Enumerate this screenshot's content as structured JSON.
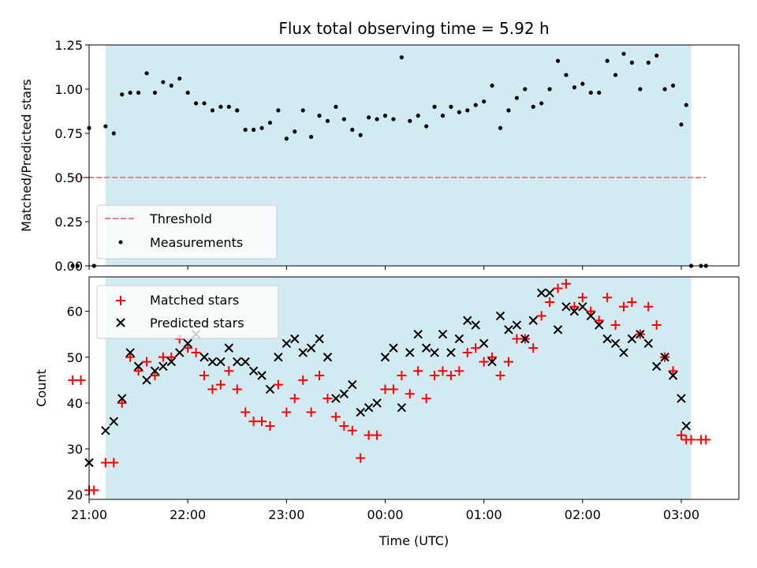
{
  "chart_data": [
    {
      "type": "scatter",
      "title": "Flux total observing time = 5.92 h",
      "xlabel": "",
      "ylabel": "Matched/Predicted stars",
      "ylim": [
        0,
        1.25
      ],
      "yticks": [
        "0.00",
        "0.25",
        "0.50",
        "0.75",
        "1.00",
        "1.25"
      ],
      "shaded_window": {
        "start": "21:10",
        "end": "03:06",
        "color": "#add8e6"
      },
      "legend_position": "lower-left",
      "series": [
        {
          "name": "Threshold",
          "style": "dashed-line",
          "color": "#f08080",
          "x": [
            "20:50",
            "03:15"
          ],
          "y": [
            0.5,
            0.5
          ]
        },
        {
          "name": "Measurements",
          "style": "dot",
          "color": "#000000",
          "x": [
            "20:50",
            "20:53",
            "21:00",
            "21:03",
            "21:10",
            "21:15",
            "21:20",
            "21:25",
            "21:30",
            "21:35",
            "21:40",
            "21:45",
            "21:50",
            "21:55",
            "22:00",
            "22:05",
            "22:10",
            "22:15",
            "22:20",
            "22:25",
            "22:30",
            "22:35",
            "22:40",
            "22:45",
            "22:50",
            "22:55",
            "23:00",
            "23:05",
            "23:10",
            "23:15",
            "23:20",
            "23:25",
            "23:30",
            "23:35",
            "23:40",
            "23:45",
            "23:50",
            "23:55",
            "00:00",
            "00:05",
            "00:10",
            "00:15",
            "00:20",
            "00:25",
            "00:30",
            "00:35",
            "00:40",
            "00:45",
            "00:50",
            "00:55",
            "01:00",
            "01:05",
            "01:10",
            "01:15",
            "01:20",
            "01:25",
            "01:30",
            "01:35",
            "01:40",
            "01:45",
            "01:50",
            "01:55",
            "02:00",
            "02:05",
            "02:10",
            "02:15",
            "02:20",
            "02:25",
            "02:30",
            "02:35",
            "02:40",
            "02:45",
            "02:50",
            "02:55",
            "03:00",
            "03:03",
            "03:06",
            "03:12",
            "03:15"
          ],
          "y": [
            0.0,
            0.0,
            0.78,
            0.0,
            0.79,
            0.75,
            0.97,
            0.98,
            0.98,
            1.09,
            0.98,
            1.04,
            1.02,
            1.06,
            0.98,
            0.92,
            0.92,
            0.88,
            0.9,
            0.9,
            0.88,
            0.77,
            0.77,
            0.78,
            0.81,
            0.88,
            0.72,
            0.76,
            0.88,
            0.73,
            0.85,
            0.82,
            0.9,
            0.83,
            0.77,
            0.74,
            0.84,
            0.83,
            0.85,
            0.83,
            1.18,
            0.82,
            0.85,
            0.79,
            0.9,
            0.85,
            0.9,
            0.87,
            0.88,
            0.91,
            0.93,
            1.02,
            0.78,
            0.88,
            0.95,
            1.0,
            0.9,
            0.92,
            1.0,
            1.16,
            1.08,
            1.01,
            1.03,
            0.98,
            0.98,
            1.16,
            1.08,
            1.2,
            1.15,
            1.0,
            1.15,
            1.19,
            1.0,
            1.02,
            0.8,
            0.91,
            0.0,
            0.0,
            0.0
          ]
        }
      ]
    },
    {
      "type": "scatter",
      "title": "",
      "xlabel": "Time (UTC)",
      "ylabel": "Count",
      "ylim": [
        19,
        67.5
      ],
      "yticks": [
        "20",
        "30",
        "40",
        "50",
        "60"
      ],
      "xticks": [
        "21:00",
        "22:00",
        "23:00",
        "00:00",
        "01:00",
        "02:00",
        "03:00"
      ],
      "shaded_window": {
        "start": "21:10",
        "end": "03:06",
        "color": "#add8e6"
      },
      "legend_position": "top-left",
      "series": [
        {
          "name": "Matched stars",
          "marker": "plus",
          "color": "#ff0000",
          "x": [
            "20:50",
            "20:55",
            "21:00",
            "21:03",
            "21:10",
            "21:15",
            "21:20",
            "21:25",
            "21:30",
            "21:35",
            "21:40",
            "21:45",
            "21:50",
            "21:55",
            "22:00",
            "22:05",
            "22:10",
            "22:15",
            "22:20",
            "22:25",
            "22:30",
            "22:35",
            "22:40",
            "22:45",
            "22:50",
            "22:55",
            "23:00",
            "23:05",
            "23:10",
            "23:15",
            "23:20",
            "23:25",
            "23:30",
            "23:35",
            "23:40",
            "23:45",
            "23:50",
            "23:55",
            "00:00",
            "00:05",
            "00:10",
            "00:15",
            "00:20",
            "00:25",
            "00:30",
            "00:35",
            "00:40",
            "00:45",
            "00:50",
            "00:55",
            "01:00",
            "01:05",
            "01:10",
            "01:15",
            "01:20",
            "01:25",
            "01:30",
            "01:35",
            "01:40",
            "01:45",
            "01:50",
            "01:55",
            "02:00",
            "02:05",
            "02:10",
            "02:15",
            "02:20",
            "02:25",
            "02:30",
            "02:35",
            "02:40",
            "02:45",
            "02:50",
            "02:55",
            "03:00",
            "03:03",
            "03:06",
            "03:12",
            "03:15"
          ],
          "y": [
            45,
            45,
            21,
            21,
            27,
            27,
            40,
            50,
            47,
            49,
            46,
            50,
            50,
            54,
            52,
            51,
            46,
            43,
            44,
            47,
            43,
            38,
            36,
            36,
            35,
            44,
            38,
            41,
            45,
            38,
            46,
            41,
            37,
            35,
            34,
            28,
            33,
            33,
            43,
            43,
            46,
            42,
            47,
            41,
            46,
            47,
            46,
            47,
            51,
            52,
            49,
            50,
            46,
            49,
            54,
            54,
            52,
            59,
            62,
            65,
            66,
            61,
            63,
            60,
            58,
            63,
            57,
            61,
            62,
            55,
            61,
            57,
            50,
            47,
            33,
            32,
            32,
            32,
            32
          ]
        },
        {
          "name": "Predicted stars",
          "marker": "x",
          "color": "#000000",
          "x": [
            "21:00",
            "21:10",
            "21:15",
            "21:20",
            "21:25",
            "21:30",
            "21:35",
            "21:40",
            "21:45",
            "21:50",
            "21:55",
            "22:00",
            "22:05",
            "22:10",
            "22:15",
            "22:20",
            "22:25",
            "22:30",
            "22:35",
            "22:40",
            "22:45",
            "22:50",
            "22:55",
            "23:00",
            "23:05",
            "23:10",
            "23:15",
            "23:20",
            "23:25",
            "23:30",
            "23:35",
            "23:40",
            "23:45",
            "23:50",
            "23:55",
            "00:00",
            "00:05",
            "00:10",
            "00:15",
            "00:20",
            "00:25",
            "00:30",
            "00:35",
            "00:40",
            "00:45",
            "00:50",
            "00:55",
            "01:00",
            "01:05",
            "01:10",
            "01:15",
            "01:20",
            "01:25",
            "01:30",
            "01:35",
            "01:40",
            "01:45",
            "01:50",
            "01:55",
            "02:00",
            "02:05",
            "02:10",
            "02:15",
            "02:20",
            "02:25",
            "02:30",
            "02:35",
            "02:40",
            "02:45",
            "02:50",
            "02:55",
            "03:00",
            "03:03"
          ],
          "y": [
            27,
            34,
            36,
            41,
            51,
            48,
            45,
            47,
            48,
            49,
            51,
            53,
            55,
            50,
            49,
            49,
            52,
            49,
            49,
            47,
            46,
            43,
            50,
            53,
            54,
            51,
            52,
            54,
            50,
            41,
            42,
            44,
            38,
            39,
            40,
            50,
            52,
            39,
            51,
            55,
            52,
            51,
            55,
            51,
            54,
            58,
            57,
            53,
            49,
            59,
            56,
            57,
            54,
            58,
            64,
            64,
            56,
            61,
            60,
            61,
            59,
            57,
            54,
            53,
            51,
            54,
            55,
            53,
            48,
            50,
            46,
            41,
            35
          ]
        }
      ]
    }
  ]
}
